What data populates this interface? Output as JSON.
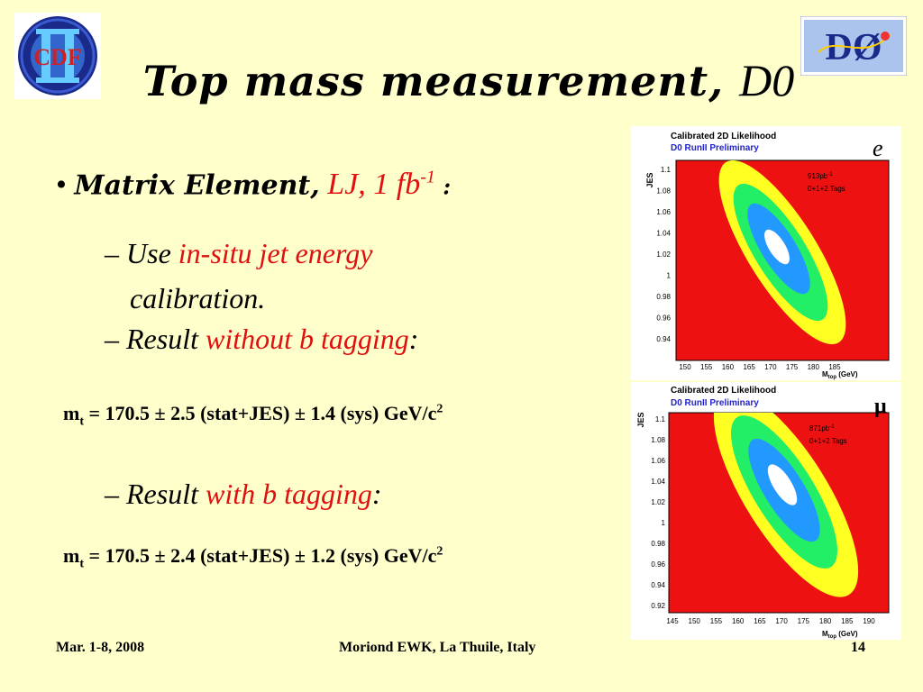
{
  "title": {
    "part1": "Top mass measurement, ",
    "part2": "D0"
  },
  "bullet1": {
    "marker": "•",
    "method": "Matrix Element,",
    "channel": "LJ, 1 fb",
    "sup": "-1",
    "tail": " :"
  },
  "sub1": {
    "dash": "– ",
    "prefix": "Use ",
    "highlight": "in-situ jet energy",
    "suffix": "calibration."
  },
  "sub2": {
    "dash": "– ",
    "prefix": "Result ",
    "highlight": "without b tagging",
    "suffix": ":"
  },
  "result1": {
    "m": "m",
    "sub": "t",
    "text": " = 170.5 ± 2.5 (stat+JES) ± 1.4 (sys) GeV/c",
    "sup": "2"
  },
  "sub3": {
    "dash": "– ",
    "prefix": "Result ",
    "highlight": "with b tagging",
    "suffix": ":"
  },
  "result2": {
    "m": "m",
    "sub": "t",
    "text": " = 170.5 ± 2.4 (stat+JES) ± 1.2 (sys) GeV/c",
    "sup": "2"
  },
  "logos": {
    "cdf": "CDF",
    "d0": "DØ"
  },
  "plots": [
    {
      "channel_label": "e",
      "title": "Calibrated 2D Likelihood",
      "subtitle": "D0 RunII Preliminary",
      "lumi": "913pb",
      "lumi_sup": "-1",
      "tags": "0+1+2 Tags",
      "ylabel": "JES",
      "xlabel": "M",
      "xlabel_sub": "top",
      "xlabel_unit": " (GeV)",
      "yticks": [
        "1.1",
        "1.08",
        "1.06",
        "1.04",
        "1.02",
        "1",
        "0.98",
        "0.96",
        "0.94"
      ],
      "xticks": [
        "150",
        "155",
        "160",
        "165",
        "170",
        "175",
        "180",
        "185"
      ]
    },
    {
      "channel_label": "μ",
      "title": "Calibrated 2D Likelihood",
      "subtitle": "D0 RunII Preliminary",
      "lumi": "871pb",
      "lumi_sup": "-1",
      "tags": "0+1+2 Tags",
      "ylabel": "JES",
      "xlabel": "M",
      "xlabel_sub": "top",
      "xlabel_unit": " (GeV)",
      "yticks": [
        "1.1",
        "1.08",
        "1.06",
        "1.04",
        "1.02",
        "1",
        "0.98",
        "0.96",
        "0.94",
        "0.92"
      ],
      "xticks": [
        "145",
        "150",
        "155",
        "160",
        "165",
        "170",
        "175",
        "180",
        "185",
        "190"
      ]
    }
  ],
  "footer": {
    "date": "Mar. 1-8, 2008",
    "event": "Moriond EWK, La Thuile, Italy",
    "page": "14"
  }
}
